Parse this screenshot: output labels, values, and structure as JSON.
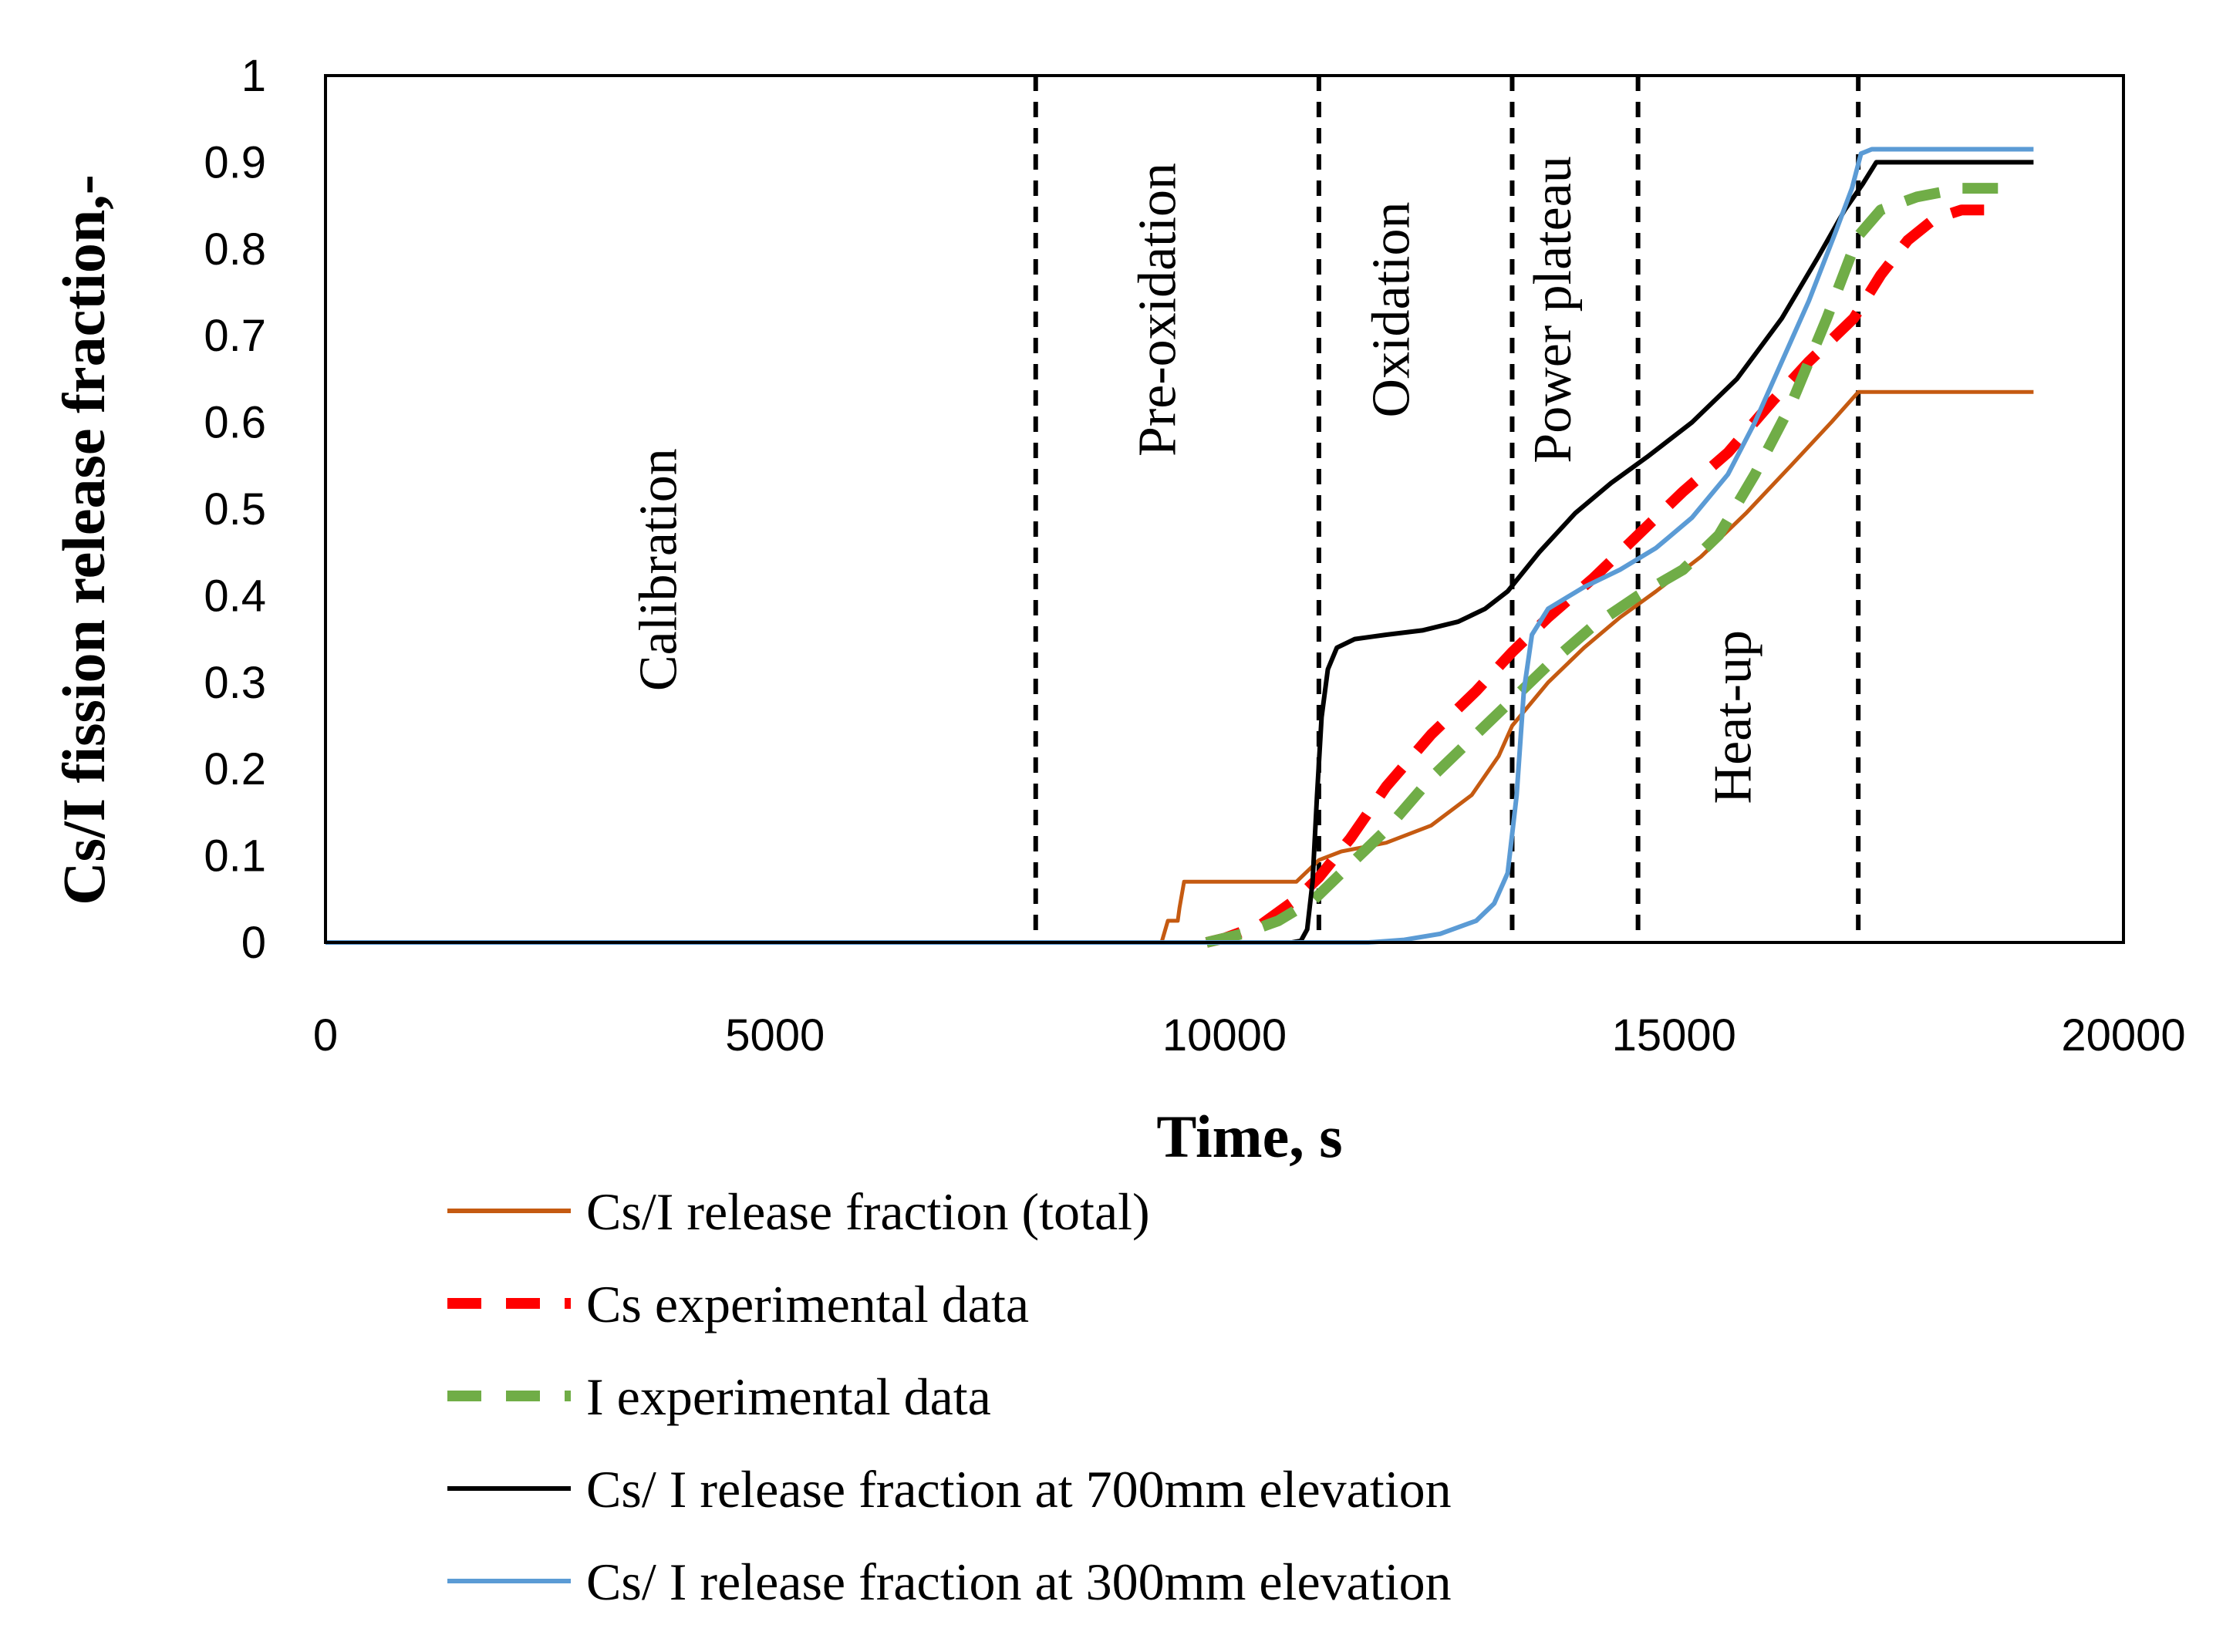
{
  "chart_data": {
    "type": "line",
    "xlabel": "Time, s",
    "ylabel": "Cs/I fission release fraction,-",
    "xlim": [
      0,
      20000
    ],
    "ylim": [
      0,
      1
    ],
    "xticks": [
      0,
      5000,
      10000,
      15000,
      20000
    ],
    "xtick_labels": [
      "0",
      "5000",
      "10000",
      "15000",
      "20000"
    ],
    "yticks": [
      0,
      0.1,
      0.2,
      0.3,
      0.4,
      0.5,
      0.6,
      0.7,
      0.8,
      0.9,
      1
    ],
    "ytick_labels": [
      "0",
      "0.1",
      "0.2",
      "0.3",
      "0.4",
      "0.5",
      "0.6",
      "0.7",
      "0.8",
      "0.9",
      "1"
    ],
    "grid": false,
    "legend_position": "bottom",
    "phase_boundaries": [
      7900,
      11050,
      13200,
      14600,
      17050
    ],
    "phases": [
      {
        "label": "Calibration",
        "x": 3900,
        "y": 0.43
      },
      {
        "label": "Pre-oxidation",
        "x": 9450,
        "y": 0.73
      },
      {
        "label": "Oxidation",
        "x": 12050,
        "y": 0.73
      },
      {
        "label": "Power plateau",
        "x": 13850,
        "y": 0.73
      },
      {
        "label": "Heat-up",
        "x": 15850,
        "y": 0.26
      }
    ],
    "series": [
      {
        "name": "Cs/I release fraction (total)",
        "color": "#c55a11",
        "style": "solid",
        "points": [
          [
            0,
            0
          ],
          [
            9300,
            0
          ],
          [
            9370,
            0.025
          ],
          [
            9480,
            0.025
          ],
          [
            9500,
            0.04
          ],
          [
            9550,
            0.07
          ],
          [
            10800,
            0.07
          ],
          [
            10950,
            0.085
          ],
          [
            11050,
            0.095
          ],
          [
            11300,
            0.105
          ],
          [
            11800,
            0.115
          ],
          [
            12300,
            0.135
          ],
          [
            12750,
            0.17
          ],
          [
            13050,
            0.215
          ],
          [
            13200,
            0.25
          ],
          [
            13400,
            0.275
          ],
          [
            13600,
            0.3
          ],
          [
            14000,
            0.34
          ],
          [
            14400,
            0.375
          ],
          [
            14800,
            0.405
          ],
          [
            15300,
            0.445
          ],
          [
            15800,
            0.495
          ],
          [
            16300,
            0.55
          ],
          [
            16750,
            0.6
          ],
          [
            17050,
            0.635
          ],
          [
            19000,
            0.635
          ]
        ]
      },
      {
        "name": "Cs experimental data",
        "color": "#ff0000",
        "style": "dashed",
        "points": [
          [
            9800,
            0
          ],
          [
            10000,
            0.005
          ],
          [
            10400,
            0.02
          ],
          [
            10800,
            0.05
          ],
          [
            11050,
            0.075
          ],
          [
            11400,
            0.12
          ],
          [
            11800,
            0.18
          ],
          [
            12300,
            0.24
          ],
          [
            12800,
            0.29
          ],
          [
            13200,
            0.335
          ],
          [
            13600,
            0.375
          ],
          [
            14100,
            0.42
          ],
          [
            14600,
            0.47
          ],
          [
            15100,
            0.52
          ],
          [
            15600,
            0.565
          ],
          [
            16100,
            0.625
          ],
          [
            16500,
            0.67
          ],
          [
            17000,
            0.72
          ],
          [
            17300,
            0.77
          ],
          [
            17600,
            0.81
          ],
          [
            17900,
            0.835
          ],
          [
            18200,
            0.845
          ],
          [
            18450,
            0.845
          ]
        ]
      },
      {
        "name": "I experimental data",
        "color": "#70ad47",
        "style": "dashed",
        "points": [
          [
            9800,
            0
          ],
          [
            10200,
            0.01
          ],
          [
            10600,
            0.025
          ],
          [
            11000,
            0.05
          ],
          [
            11400,
            0.09
          ],
          [
            11800,
            0.13
          ],
          [
            12300,
            0.19
          ],
          [
            12800,
            0.24
          ],
          [
            13200,
            0.28
          ],
          [
            13600,
            0.32
          ],
          [
            14100,
            0.365
          ],
          [
            14600,
            0.4
          ],
          [
            15100,
            0.43
          ],
          [
            15500,
            0.47
          ],
          [
            15900,
            0.54
          ],
          [
            16300,
            0.62
          ],
          [
            16700,
            0.72
          ],
          [
            17050,
            0.815
          ],
          [
            17300,
            0.845
          ],
          [
            17700,
            0.86
          ],
          [
            18200,
            0.87
          ],
          [
            18800,
            0.87
          ]
        ]
      },
      {
        "name": "Cs/ I release fraction at 700mm elevation",
        "color": "#000000",
        "style": "solid",
        "points": [
          [
            0,
            0
          ],
          [
            10750,
            0
          ],
          [
            10850,
            0.002
          ],
          [
            10920,
            0.015
          ],
          [
            10980,
            0.07
          ],
          [
            11030,
            0.17
          ],
          [
            11080,
            0.26
          ],
          [
            11150,
            0.315
          ],
          [
            11250,
            0.34
          ],
          [
            11450,
            0.35
          ],
          [
            11800,
            0.355
          ],
          [
            12200,
            0.36
          ],
          [
            12600,
            0.37
          ],
          [
            12900,
            0.385
          ],
          [
            13150,
            0.405
          ],
          [
            13500,
            0.45
          ],
          [
            13900,
            0.495
          ],
          [
            14300,
            0.53
          ],
          [
            14700,
            0.56
          ],
          [
            15200,
            0.6
          ],
          [
            15700,
            0.65
          ],
          [
            16200,
            0.72
          ],
          [
            16600,
            0.79
          ],
          [
            16900,
            0.845
          ],
          [
            17100,
            0.875
          ],
          [
            17250,
            0.9
          ],
          [
            19000,
            0.9
          ]
        ]
      },
      {
        "name": "Cs/ I release fraction at 300mm elevation",
        "color": "#5b9bd5",
        "style": "solid",
        "points": [
          [
            0,
            0
          ],
          [
            11600,
            0
          ],
          [
            12000,
            0.003
          ],
          [
            12400,
            0.01
          ],
          [
            12800,
            0.025
          ],
          [
            13000,
            0.045
          ],
          [
            13150,
            0.08
          ],
          [
            13250,
            0.17
          ],
          [
            13330,
            0.29
          ],
          [
            13420,
            0.355
          ],
          [
            13600,
            0.385
          ],
          [
            14000,
            0.41
          ],
          [
            14400,
            0.43
          ],
          [
            14800,
            0.455
          ],
          [
            15200,
            0.49
          ],
          [
            15600,
            0.54
          ],
          [
            15900,
            0.6
          ],
          [
            16200,
            0.67
          ],
          [
            16500,
            0.74
          ],
          [
            16800,
            0.82
          ],
          [
            16980,
            0.87
          ],
          [
            17080,
            0.91
          ],
          [
            17200,
            0.915
          ],
          [
            19000,
            0.915
          ]
        ]
      }
    ]
  }
}
